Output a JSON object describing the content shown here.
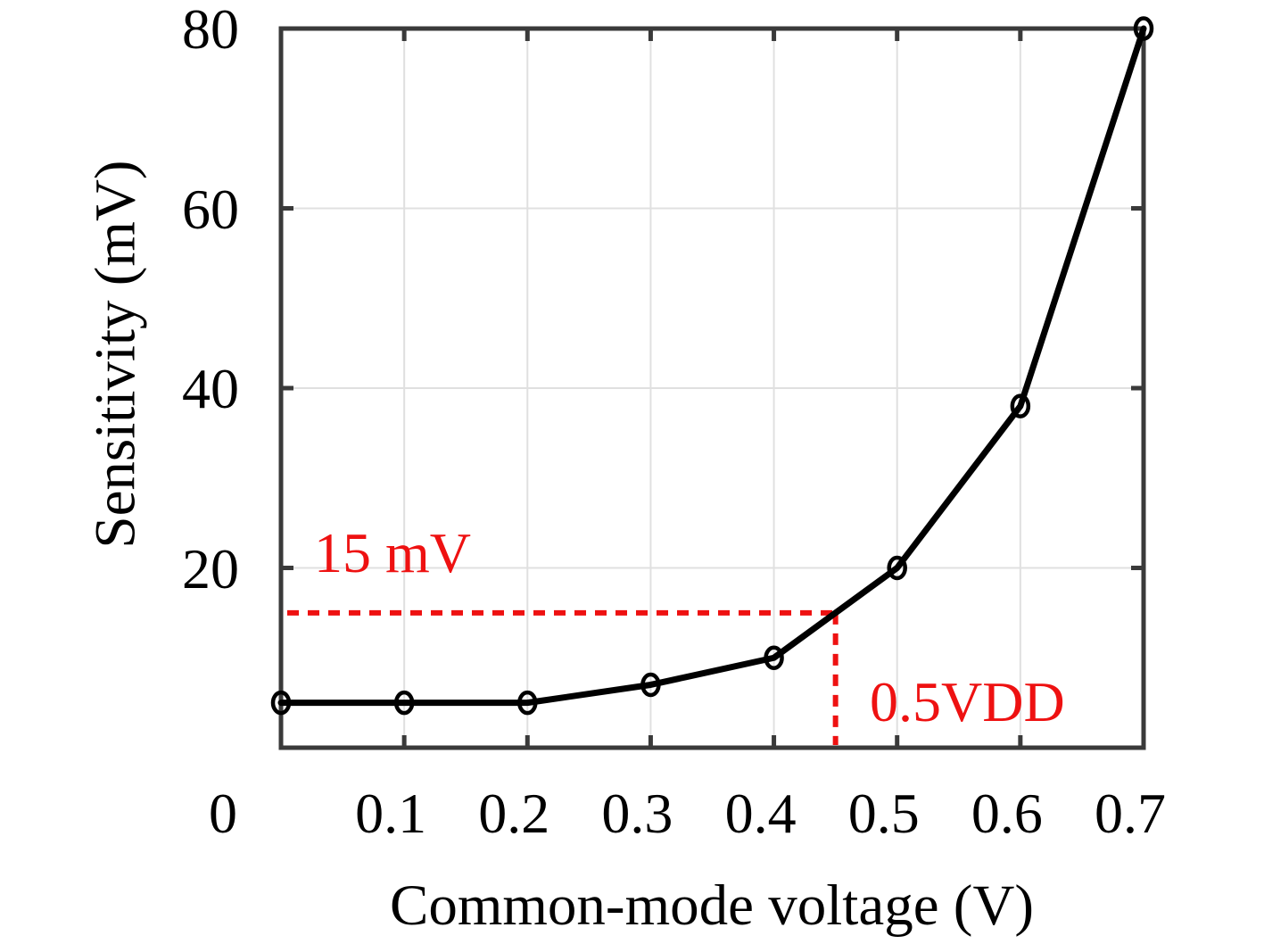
{
  "figure": {
    "background": "#ffffff"
  },
  "chart_data": {
    "type": "line",
    "title": "",
    "xlabel": "Common-mode voltage (V)",
    "ylabel": "Sensitivity (mV)",
    "x": [
      0,
      0.1,
      0.2,
      0.3,
      0.4,
      0.5,
      0.6,
      0.7
    ],
    "y": [
      5,
      5,
      5,
      7,
      10,
      20,
      38,
      80
    ],
    "xlim": [
      0,
      0.7
    ],
    "ylim": [
      0,
      80
    ],
    "x_ticks": {
      "values": [
        0,
        0.1,
        0.2,
        0.3,
        0.4,
        0.5,
        0.6,
        0.7
      ],
      "labels": [
        "0",
        "0.1",
        "0.2",
        "0.3",
        "0.4",
        "0.5",
        "0.6",
        "0.7"
      ]
    },
    "y_ticks": {
      "values": [
        20,
        40,
        60,
        80
      ],
      "labels": [
        "20",
        "40",
        "60",
        "80"
      ]
    },
    "grid": true,
    "legend": null,
    "marker": "open-circle",
    "line_style": "solid",
    "crosshair": {
      "x": 0.45,
      "y": 15,
      "style": "dashed"
    },
    "annotations": [
      {
        "id": "level",
        "text": "15 mV"
      },
      {
        "id": "voltage",
        "text": "0.5VDD"
      }
    ],
    "colors": {
      "line": "#000000",
      "marker": "#000000",
      "frame": "#3a3a3a",
      "grid": "#e0e0e0",
      "annotation": "#ee1111",
      "text": "#000000"
    }
  }
}
